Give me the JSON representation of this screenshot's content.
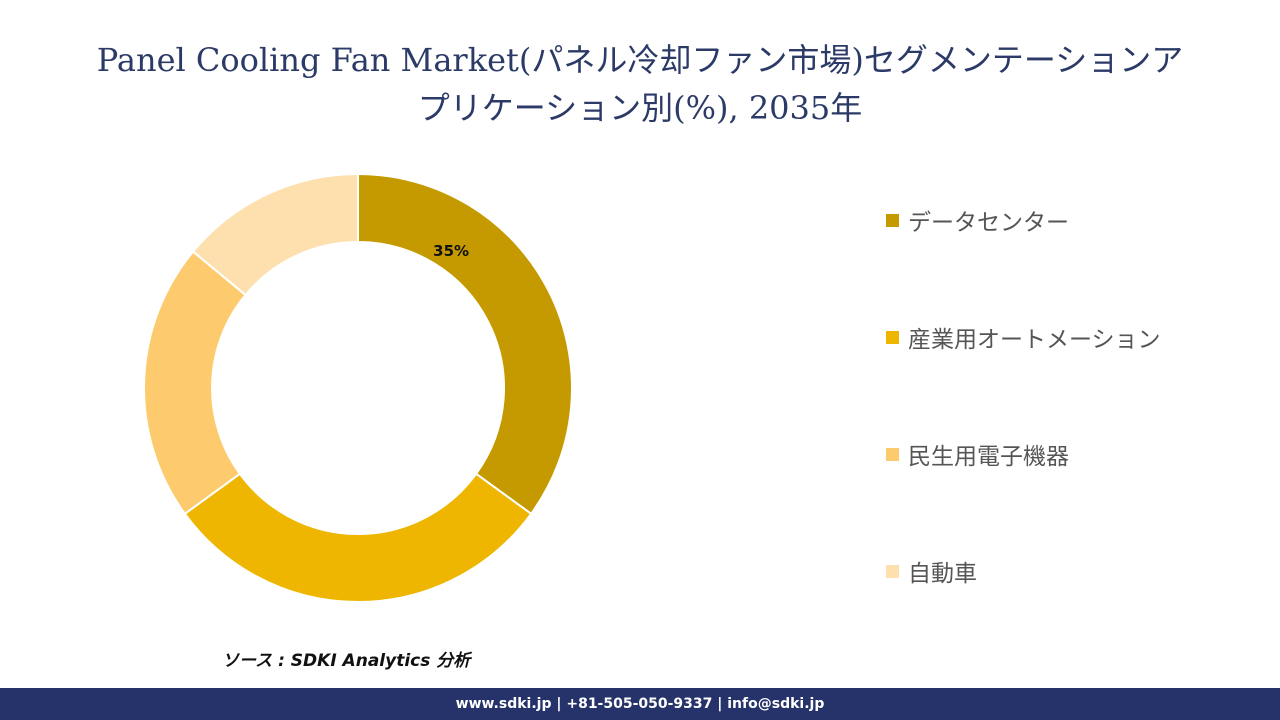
{
  "title": {
    "line1": "Panel Cooling Fan Market(パネル冷却ファン市場)セグメンテーションア",
    "line2": "プリケーション別(%), 2035年"
  },
  "chart_data": {
    "type": "pie",
    "variant": "donut",
    "categories": [
      "データセンター",
      "産業用オートメーション",
      "民生用電子機器",
      "自動車"
    ],
    "values": [
      35,
      30,
      21,
      14
    ],
    "data_labels": [
      "35%",
      null,
      null,
      null
    ],
    "colors": [
      "#c59a00",
      "#eeb600",
      "#fdcb6e",
      "#fde0ad"
    ],
    "legend_position": "right",
    "title": "Panel Cooling Fan Market(パネル冷却ファン市場)セグメンテーションアプリケーション別(%), 2035年"
  },
  "source": "ソース : SDKI Analytics 分析",
  "footer": "www.sdki.jp | +81-505-050-9337 | info@sdki.jp"
}
